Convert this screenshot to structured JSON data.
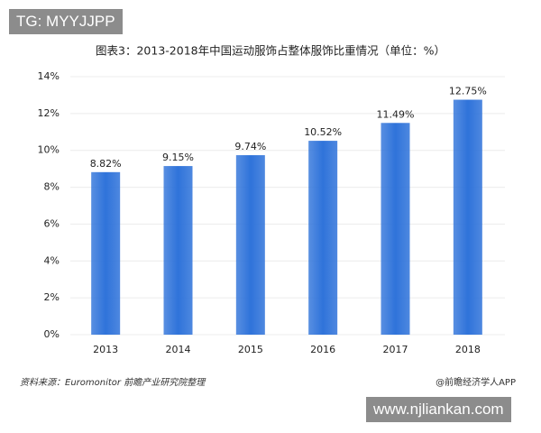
{
  "overlays": {
    "tag": "TG: MYYJJPP",
    "url": "www.njliankan.com"
  },
  "chart_data": {
    "type": "bar",
    "title": "图表3：2013-2018年中国运动服饰占整体服饰比重情况（单位：%）",
    "categories": [
      "2013",
      "2014",
      "2015",
      "2016",
      "2017",
      "2018"
    ],
    "values": [
      8.82,
      9.15,
      9.74,
      10.52,
      11.49,
      12.75
    ],
    "value_labels": [
      "8.82%",
      "9.15%",
      "9.74%",
      "10.52%",
      "11.49%",
      "12.75%"
    ],
    "color": "#2f73da",
    "ylim": [
      0,
      14
    ],
    "yticks": [
      {
        "value": 0,
        "label": "0%"
      },
      {
        "value": 2,
        "label": "2%"
      },
      {
        "value": 4,
        "label": "4%"
      },
      {
        "value": 6,
        "label": "6%"
      },
      {
        "value": 8,
        "label": "8%"
      },
      {
        "value": 10,
        "label": "10%"
      },
      {
        "value": 12,
        "label": "12%"
      },
      {
        "value": 14,
        "label": "14%"
      }
    ],
    "grid": true,
    "source": "资料来源：Euromonitor 前瞻产业研究院整理",
    "credit": "@前瞻经济学人APP"
  }
}
